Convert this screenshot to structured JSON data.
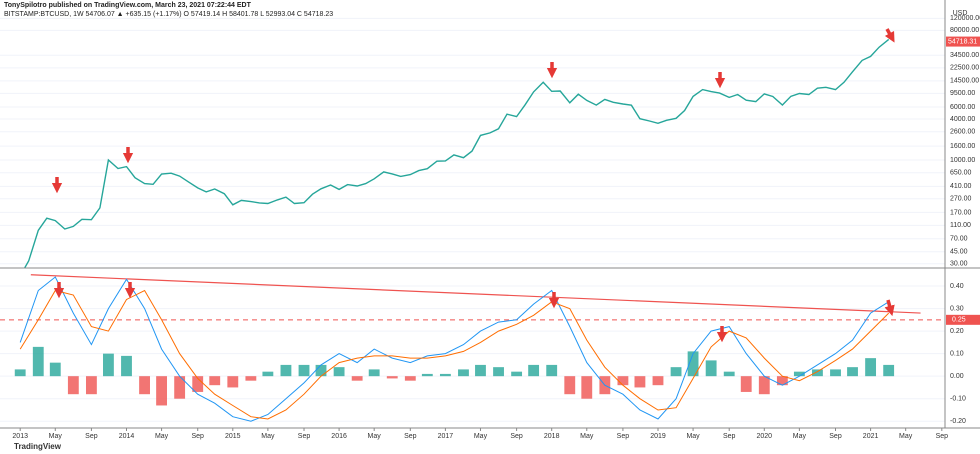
{
  "header": {
    "author": "TonySpilotro published on TradingView.com, March 23, 2021 07:22:44 EDT",
    "symbol": "BITSTAMP:BTCUSD, 1W  54706.07  ▲ +635.15 (+1.17%)  O 57419.14  H 58401.78  L 52993.04  C 54718.23",
    "currency": "USD",
    "brand": "TradingView"
  },
  "chart_data": [
    {
      "type": "line",
      "log_scale": true,
      "xlim": [
        2012.81,
        2021.7
      ],
      "ylim": [
        26,
        223000
      ],
      "yticks": [
        {
          "value": 120000,
          "label": "120000.00"
        },
        {
          "value": 80000,
          "label": "80000.00"
        },
        {
          "value": 34500,
          "label": "34500.00"
        },
        {
          "value": 22500,
          "label": "22500.00"
        },
        {
          "value": 14500,
          "label": "14500.00"
        },
        {
          "value": 9500,
          "label": "9500.00"
        },
        {
          "value": 6000,
          "label": "6000.00"
        },
        {
          "value": 4000,
          "label": "4000.00"
        },
        {
          "value": 2600,
          "label": "2600.00"
        },
        {
          "value": 1600,
          "label": "1600.00"
        },
        {
          "value": 1000,
          "label": "1000.00"
        },
        {
          "value": 650,
          "label": "650.00"
        },
        {
          "value": 410,
          "label": "410.00"
        },
        {
          "value": 270,
          "label": "270.00"
        },
        {
          "value": 170,
          "label": "170.00"
        },
        {
          "value": 110,
          "label": "110.00"
        },
        {
          "value": 70,
          "label": "70.00"
        },
        {
          "value": 45,
          "label": "45.00"
        },
        {
          "value": 30,
          "label": "30.00"
        }
      ],
      "last_value": 54718.31,
      "last_color": "#ef5350",
      "x": [
        2013.0,
        2013.08,
        2013.17,
        2013.25,
        2013.33,
        2013.42,
        2013.5,
        2013.58,
        2013.67,
        2013.75,
        2013.83,
        2013.92,
        2014.0,
        2014.08,
        2014.17,
        2014.25,
        2014.33,
        2014.42,
        2014.5,
        2014.58,
        2014.67,
        2014.75,
        2014.83,
        2014.92,
        2015.0,
        2015.08,
        2015.17,
        2015.25,
        2015.33,
        2015.42,
        2015.5,
        2015.58,
        2015.67,
        2015.75,
        2015.83,
        2015.92,
        2016.0,
        2016.08,
        2016.17,
        2016.25,
        2016.33,
        2016.42,
        2016.5,
        2016.58,
        2016.67,
        2016.75,
        2016.83,
        2016.92,
        2017.0,
        2017.08,
        2017.17,
        2017.25,
        2017.33,
        2017.42,
        2017.5,
        2017.58,
        2017.67,
        2017.75,
        2017.83,
        2017.92,
        2018.0,
        2018.08,
        2018.17,
        2018.25,
        2018.33,
        2018.42,
        2018.5,
        2018.58,
        2018.67,
        2018.75,
        2018.83,
        2018.92,
        2019.0,
        2019.08,
        2019.17,
        2019.25,
        2019.33,
        2019.42,
        2019.5,
        2019.58,
        2019.67,
        2019.75,
        2019.83,
        2019.92,
        2020.0,
        2020.08,
        2020.17,
        2020.25,
        2020.33,
        2020.42,
        2020.5,
        2020.58,
        2020.67,
        2020.75,
        2020.83,
        2020.92,
        2021.0,
        2021.08,
        2021.17
      ],
      "series": [
        {
          "name": "BTCUSD",
          "color": "#26a69a",
          "values": [
            20,
            33,
            93,
            140,
            129,
            97,
            106,
            135,
            133,
            198,
            1000,
            750,
            800,
            550,
            450,
            440,
            620,
            640,
            580,
            480,
            390,
            340,
            375,
            320,
            220,
            255,
            245,
            235,
            230,
            260,
            285,
            230,
            236,
            315,
            378,
            430,
            370,
            435,
            415,
            450,
            530,
            670,
            625,
            575,
            610,
            700,
            745,
            960,
            970,
            1190,
            1080,
            1350,
            2300,
            2500,
            2870,
            4700,
            4340,
            6450,
            10000,
            13800,
            10200,
            10300,
            6900,
            9250,
            7500,
            6400,
            7750,
            7030,
            6630,
            6370,
            4040,
            3740,
            3460,
            3820,
            4100,
            5320,
            8570,
            10800,
            10100,
            9600,
            8300,
            9150,
            7550,
            7200,
            9350,
            8540,
            6420,
            8620,
            9450,
            9140,
            11330,
            11650,
            10780,
            13800,
            19700,
            29000,
            33100,
            45200,
            58800
          ]
        }
      ]
    },
    {
      "type": "macd",
      "xlim": [
        2012.81,
        2021.7
      ],
      "ylim": [
        -0.23,
        0.48
      ],
      "yticks": [
        {
          "value": 0.4,
          "label": "0.40"
        },
        {
          "value": 0.3,
          "label": "0.30"
        },
        {
          "value": 0.2,
          "label": "0.20"
        },
        {
          "value": 0.1,
          "label": "0.10"
        },
        {
          "value": 0,
          "label": "0.00"
        },
        {
          "value": -0.1,
          "label": "-0.10"
        },
        {
          "value": -0.2,
          "label": "-0.20"
        }
      ],
      "xticks": [
        2013,
        {
          "value": 2013.33,
          "label": "May"
        },
        {
          "value": 2013.67,
          "label": "Sep"
        },
        2014,
        {
          "value": 2014.33,
          "label": "May"
        },
        {
          "value": 2014.67,
          "label": "Sep"
        },
        2015,
        {
          "value": 2015.33,
          "label": "May"
        },
        {
          "value": 2015.67,
          "label": "Sep"
        },
        2016,
        {
          "value": 2016.33,
          "label": "May"
        },
        {
          "value": 2016.67,
          "label": "Sep"
        },
        2017,
        {
          "value": 2017.33,
          "label": "May"
        },
        {
          "value": 2017.67,
          "label": "Sep"
        },
        2018,
        {
          "value": 2018.33,
          "label": "May"
        },
        {
          "value": 2018.67,
          "label": "Sep"
        },
        2019,
        {
          "value": 2019.33,
          "label": "May"
        },
        {
          "value": 2019.67,
          "label": "Sep"
        },
        2020,
        {
          "value": 2020.33,
          "label": "May"
        },
        {
          "value": 2020.67,
          "label": "Sep"
        },
        2021,
        {
          "value": 2021.33,
          "label": "May"
        },
        {
          "value": 2021.67,
          "label": "Sep"
        }
      ],
      "level": {
        "value": 0.25,
        "label": "0.25"
      },
      "level_color": "#ef5350",
      "trendline": {
        "x": [
          2013.1,
          2021.47
        ],
        "values": [
          0.45,
          0.28
        ],
        "color": "#ef5350"
      },
      "x": [
        2013.0,
        2013.17,
        2013.33,
        2013.5,
        2013.67,
        2013.83,
        2014.0,
        2014.17,
        2014.33,
        2014.5,
        2014.67,
        2014.83,
        2015.0,
        2015.17,
        2015.33,
        2015.5,
        2015.67,
        2015.83,
        2016.0,
        2016.17,
        2016.33,
        2016.5,
        2016.67,
        2016.83,
        2017.0,
        2017.17,
        2017.33,
        2017.5,
        2017.67,
        2017.83,
        2018.0,
        2018.17,
        2018.33,
        2018.5,
        2018.67,
        2018.83,
        2019.0,
        2019.17,
        2019.33,
        2019.5,
        2019.67,
        2019.83,
        2020.0,
        2020.17,
        2020.33,
        2020.5,
        2020.67,
        2020.83,
        2021.0,
        2021.17
      ],
      "histogram": {
        "pos_color": "#26a69a",
        "neg_color": "#ef5350",
        "values": [
          0.03,
          0.13,
          0.06,
          -0.08,
          -0.08,
          0.1,
          0.09,
          -0.08,
          -0.13,
          -0.1,
          -0.07,
          -0.04,
          -0.05,
          -0.02,
          0.02,
          0.05,
          0.05,
          0.05,
          0.04,
          -0.02,
          0.03,
          -0.01,
          -0.02,
          0.01,
          0.01,
          0.03,
          0.05,
          0.04,
          0.02,
          0.05,
          0.05,
          -0.08,
          -0.1,
          -0.08,
          -0.04,
          -0.05,
          -0.04,
          0.04,
          0.11,
          0.07,
          0.02,
          -0.07,
          -0.08,
          -0.04,
          0.02,
          0.03,
          0.03,
          0.04,
          0.08,
          0.05
        ]
      },
      "series": [
        {
          "name": "MACD",
          "color": "#2196f3",
          "values": [
            0.15,
            0.38,
            0.44,
            0.28,
            0.14,
            0.3,
            0.43,
            0.3,
            0.12,
            0.0,
            -0.08,
            -0.12,
            -0.18,
            -0.2,
            -0.17,
            -0.1,
            -0.03,
            0.05,
            0.1,
            0.06,
            0.12,
            0.08,
            0.06,
            0.09,
            0.1,
            0.14,
            0.2,
            0.24,
            0.25,
            0.32,
            0.38,
            0.22,
            0.06,
            -0.04,
            -0.08,
            -0.15,
            -0.19,
            -0.1,
            0.1,
            0.2,
            0.22,
            0.1,
            0.0,
            -0.04,
            0.0,
            0.05,
            0.1,
            0.16,
            0.28,
            0.33
          ]
        },
        {
          "name": "Signal",
          "color": "#ff6d00",
          "values": [
            0.12,
            0.25,
            0.38,
            0.36,
            0.22,
            0.2,
            0.34,
            0.38,
            0.25,
            0.1,
            -0.01,
            -0.08,
            -0.13,
            -0.18,
            -0.19,
            -0.15,
            -0.08,
            0.0,
            0.06,
            0.08,
            0.09,
            0.09,
            0.08,
            0.08,
            0.09,
            0.11,
            0.15,
            0.2,
            0.23,
            0.27,
            0.33,
            0.3,
            0.16,
            0.04,
            -0.04,
            -0.1,
            -0.15,
            -0.14,
            -0.01,
            0.13,
            0.2,
            0.17,
            0.08,
            0.0,
            -0.02,
            0.02,
            0.07,
            0.12,
            0.2,
            0.28
          ]
        }
      ]
    }
  ]
}
